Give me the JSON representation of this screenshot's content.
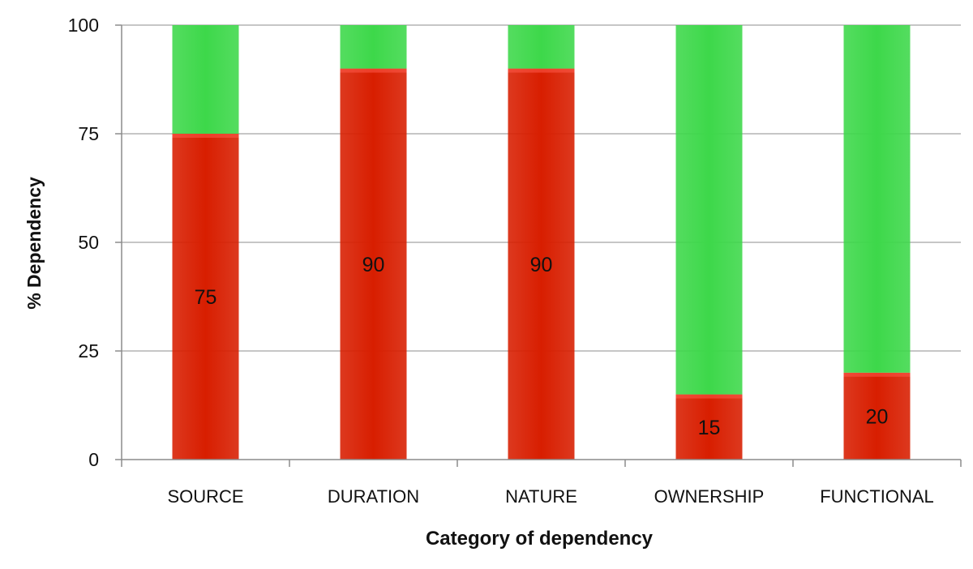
{
  "chart_data": {
    "type": "bar",
    "stacked": true,
    "title": "",
    "xlabel": "Category of dependency",
    "ylabel": "% Dependency",
    "categories": [
      "SOURCE",
      "DURATION",
      "NATURE",
      "OWNERSHIP",
      "FUNCTIONAL"
    ],
    "ylim": [
      0,
      100
    ],
    "yticks": [
      "0",
      "25",
      "50",
      "75",
      "100"
    ],
    "grid": true,
    "legend": "none",
    "series": [
      {
        "values": [
          75,
          90,
          90,
          15,
          20
        ],
        "color": "#d81e00",
        "data_labels": [
          "75",
          "90",
          "90",
          "15",
          "20"
        ]
      },
      {
        "values": [
          25,
          10,
          10,
          85,
          80
        ],
        "color": "#3dd84a"
      }
    ]
  }
}
